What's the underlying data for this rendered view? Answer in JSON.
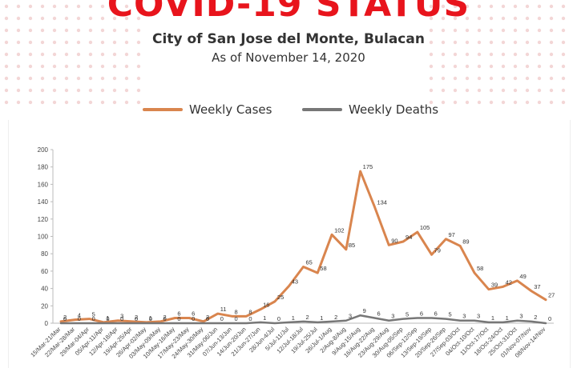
{
  "header": {
    "title": "COVID-19 STATUS",
    "subtitle": "City of San Jose del Monte, Bulacan",
    "as_of": "As of November 14, 2020"
  },
  "colors": {
    "title": "#e8141c",
    "cases": "#d9854e",
    "deaths": "#777777",
    "dots": "#f3d6d6"
  },
  "chart_data": {
    "type": "line",
    "title": "",
    "xlabel": "",
    "ylabel": "",
    "ylim": [
      0,
      200
    ],
    "yticks": [
      0,
      20,
      40,
      60,
      80,
      100,
      120,
      140,
      160,
      180,
      200
    ],
    "legend_position": "top",
    "grid": false,
    "categories": [
      "15/Mar-21/Mar",
      "22/Mar-28/Mar",
      "29/Mar-04/Apr",
      "05/Apr-11/Apr",
      "12/Apr-18/Apr",
      "19/Apr-25/Apr",
      "26/Apr-02/May",
      "03/May-09/May",
      "10/May-16/May",
      "17/May-23/May",
      "24/May-30/May",
      "31/May-06/Jun",
      "07/Jun-13/Jun",
      "14/Jun-20/Jun",
      "21/Jun-27/Jun",
      "28/Jun-4/Jul",
      "5/Jul-11/Jul",
      "12/Jul-18/Jul",
      "19/Jul-25/Jul",
      "26/Jul-1/Aug",
      "2/Aug-8/Aug",
      "9/Aug-15/Aug",
      "16/Aug-22/Aug",
      "23/Aug-29/Aug",
      "30/Aug-05/Sep",
      "06/Sep-12/Sep",
      "13/Sep-19/Sep",
      "20/Sep-26/Sep",
      "27/Sep-03/Oct",
      "04/Oct-10/Oct",
      "11/Oct-17/Oct",
      "18/Oct-24/Oct",
      "25/Oct-31/Oct",
      "01/Nov-07/Nov",
      "08/Nov-14/Nov"
    ],
    "series": [
      {
        "name": "Weekly Cases",
        "values": [
          2,
          4,
          5,
          1,
          3,
          2,
          1,
          2,
          6,
          6,
          2,
          11,
          8,
          8,
          16,
          25,
          43,
          65,
          58,
          102,
          85,
          175,
          134,
          90,
          94,
          105,
          79,
          97,
          89,
          58,
          39,
          42,
          49,
          37,
          27
        ]
      },
      {
        "name": "Weekly Deaths",
        "values": [
          0,
          0,
          0,
          0,
          0,
          0,
          0,
          0,
          0,
          0,
          0,
          0,
          0,
          0,
          1,
          0,
          1,
          2,
          1,
          2,
          3,
          9,
          6,
          3,
          5,
          6,
          6,
          5,
          3,
          3,
          1,
          1,
          3,
          2,
          0
        ]
      }
    ]
  }
}
